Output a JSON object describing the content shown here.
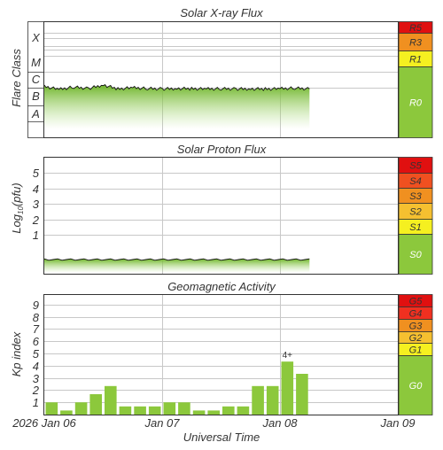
{
  "colors": {
    "bar_green": "#8cc83c",
    "grid": "#c8c8c8",
    "frame": "#333333",
    "scale": {
      "red": "#e01010",
      "orange_red": "#f05020",
      "orange": "#f09020",
      "yellow_orange": "#f5c030",
      "yellow": "#f5f020",
      "green": "#8cc83c"
    }
  },
  "x_axis": {
    "label": "Universal Time",
    "ticks": [
      "2026 Jan 06",
      "Jan 07",
      "Jan 08",
      "Jan 09"
    ]
  },
  "chart_data": [
    {
      "type": "area",
      "title": "Solar X-ray Flux",
      "ylabel": "Flare Class",
      "y_scale": "log",
      "y_ticks": [
        "A",
        "B",
        "C",
        "M",
        "X"
      ],
      "x_range": [
        "2026-01-06",
        "2026-01-09"
      ],
      "series": [
        {
          "x": [
            "2026-01-06 00:00",
            "2026-01-06 03:00",
            "2026-01-06 06:00",
            "2026-01-06 09:00",
            "2026-01-06 12:00",
            "2026-01-06 15:00",
            "2026-01-06 18:00",
            "2026-01-06 21:00",
            "2026-01-07 00:00",
            "2026-01-07 03:00",
            "2026-01-07 06:00",
            "2026-01-07 09:00",
            "2026-01-07 12:00",
            "2026-01-07 15:00",
            "2026-01-07 18:00",
            "2026-01-07 21:00",
            "2026-01-08 00:00",
            "2026-01-08 03:00",
            "2026-01-08 06:00"
          ],
          "values": [
            "C1.2",
            "B8.0",
            "C1.1",
            "B9.0",
            "C1.5",
            "B8.5",
            "C1.0",
            "B9.0",
            "B8.5",
            "B9.0",
            "B8.8",
            "B8.5",
            "B8.8",
            "B8.5",
            "B8.6",
            "B8.4",
            "B8.8",
            "B9.5",
            "B8.5"
          ]
        }
      ],
      "scale": [
        {
          "label": "R5",
          "color": "#e01010"
        },
        {
          "label": "R3",
          "color": "#f09020"
        },
        {
          "label": "R1",
          "color": "#f5f020"
        },
        {
          "label": "R0",
          "color": "#8cc83c"
        }
      ]
    },
    {
      "type": "area",
      "title": "Solar Proton Flux",
      "ylabel": "Log10(pfu)",
      "ylim": [
        -1,
        6
      ],
      "y_ticks": [
        1,
        2,
        3,
        4,
        5
      ],
      "x_range": [
        "2026-01-06",
        "2026-01-09"
      ],
      "series": [
        {
          "x": [
            "2026-01-06 00:00",
            "2026-01-06 12:00",
            "2026-01-07 00:00",
            "2026-01-07 12:00",
            "2026-01-08 00:00",
            "2026-01-08 06:00"
          ],
          "values": [
            -0.4,
            -0.4,
            -0.4,
            -0.4,
            -0.4,
            -0.4
          ]
        }
      ],
      "scale": [
        {
          "label": "S5",
          "color": "#e01010"
        },
        {
          "label": "S4",
          "color": "#f05020"
        },
        {
          "label": "S3",
          "color": "#f09020"
        },
        {
          "label": "S2",
          "color": "#f5c030"
        },
        {
          "label": "S1",
          "color": "#f5f020"
        },
        {
          "label": "S0",
          "color": "#8cc83c"
        }
      ]
    },
    {
      "type": "bar",
      "title": "Geomagnetic Activity",
      "ylabel": "Kp index",
      "ylim": [
        0,
        9
      ],
      "y_ticks": [
        1,
        2,
        3,
        4,
        5,
        6,
        7,
        8,
        9
      ],
      "x": [
        "2026-01-06 00:00",
        "2026-01-06 03:00",
        "2026-01-06 06:00",
        "2026-01-06 09:00",
        "2026-01-06 12:00",
        "2026-01-06 15:00",
        "2026-01-06 18:00",
        "2026-01-06 21:00",
        "2026-01-07 00:00",
        "2026-01-07 03:00",
        "2026-01-07 06:00",
        "2026-01-07 09:00",
        "2026-01-07 12:00",
        "2026-01-07 15:00",
        "2026-01-07 18:00",
        "2026-01-07 21:00",
        "2026-01-08 00:00",
        "2026-01-08 03:00"
      ],
      "values": [
        1.0,
        0.33,
        1.0,
        1.67,
        2.33,
        0.67,
        0.67,
        0.67,
        1.0,
        1.0,
        0.33,
        0.33,
        0.67,
        0.67,
        2.33,
        2.33,
        4.33,
        3.33
      ],
      "max_label": "4+",
      "scale": [
        {
          "label": "G5",
          "color": "#e01010"
        },
        {
          "label": "G4",
          "color": "#f03020"
        },
        {
          "label": "G3",
          "color": "#f09020"
        },
        {
          "label": "G2",
          "color": "#f5c030"
        },
        {
          "label": "G1",
          "color": "#f5f020"
        },
        {
          "label": "G0",
          "color": "#8cc83c"
        }
      ]
    }
  ]
}
